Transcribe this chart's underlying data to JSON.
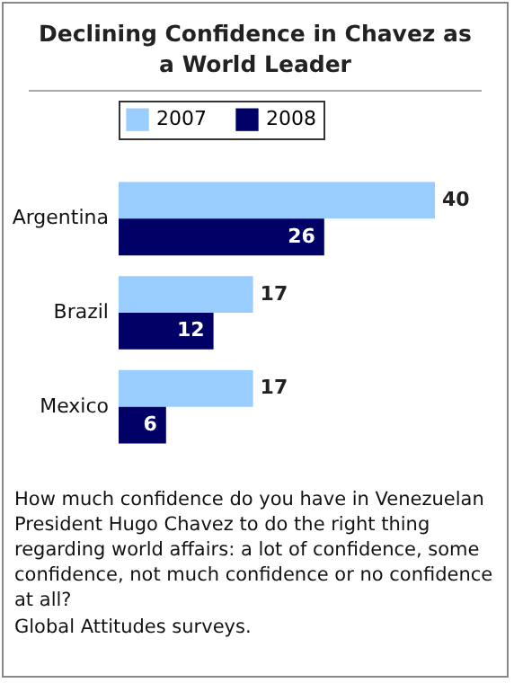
{
  "chart_data": {
    "type": "bar",
    "orientation": "horizontal",
    "title": "Declining Confidence in Chavez as a World Leader",
    "categories": [
      "Argentina",
      "Brazil",
      "Mexico"
    ],
    "series": [
      {
        "name": "2007",
        "color": "#99ccff",
        "values": [
          40,
          17,
          17
        ]
      },
      {
        "name": "2008",
        "color": "#000066",
        "values": [
          26,
          12,
          6
        ]
      }
    ],
    "data_labels": true,
    "legend": "top",
    "annotations": [
      "How much confidence do you have in Venezuelan President Hugo Chavez to do the right thing regarding world affairs: a lot of confidence, some confidence, not much confidence or no confidence at all?",
      "Global Attitudes surveys."
    ]
  }
}
